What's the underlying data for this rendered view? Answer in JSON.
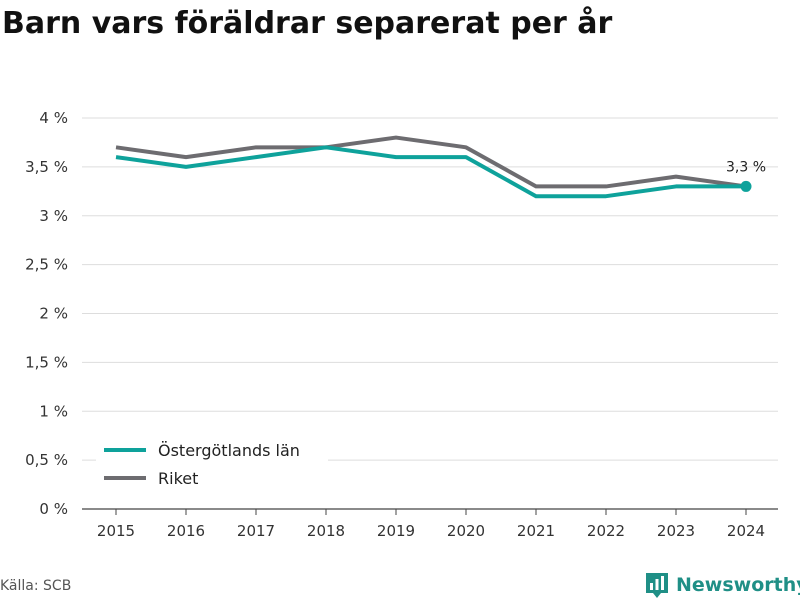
{
  "title": "Barn vars föräldrar separerat per år",
  "source": "Källa: SCB",
  "brand": "Newsworthy",
  "brand_icon": "newsworthy-logo-icon",
  "chart_data": {
    "type": "line",
    "title": "Barn vars föräldrar separerat per år",
    "x": [
      2015,
      2016,
      2017,
      2018,
      2019,
      2020,
      2021,
      2022,
      2023,
      2024
    ],
    "series": [
      {
        "name": "Östergötlands län",
        "color": "#0ea29b",
        "values": [
          3.6,
          3.5,
          3.6,
          3.7,
          3.6,
          3.6,
          3.2,
          3.2,
          3.3,
          3.3
        ]
      },
      {
        "name": "Riket",
        "color": "#6d6c70",
        "values": [
          3.7,
          3.6,
          3.7,
          3.7,
          3.8,
          3.7,
          3.3,
          3.3,
          3.4,
          3.3
        ]
      }
    ],
    "ylim": [
      0,
      4
    ],
    "yticks": [
      0,
      0.5,
      1,
      1.5,
      2,
      2.5,
      3,
      3.5,
      4
    ],
    "ytick_labels": [
      "0 %",
      "0,5 %",
      "1 %",
      "1,5 %",
      "2 %",
      "2,5 %",
      "3 %",
      "3,5 %",
      "4 %"
    ],
    "xtick_labels": [
      "2015",
      "2016",
      "2017",
      "2018",
      "2019",
      "2020",
      "2021",
      "2022",
      "2023",
      "2024"
    ],
    "end_label": "3,3 %",
    "grid": true,
    "legend_position": "bottom-left"
  }
}
